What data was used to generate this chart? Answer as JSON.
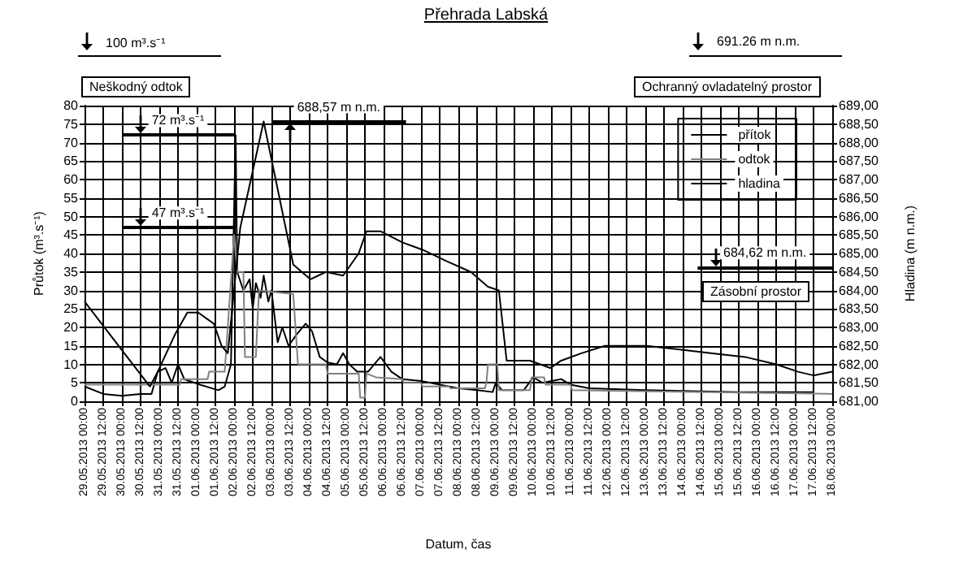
{
  "chart_data": {
    "type": "line",
    "title": "Přehrada Labská",
    "xlabel": "Datum, čas",
    "ylabel": "Průtok (m³.s⁻¹)",
    "y2label": "Hladina (m n.m.)",
    "annotations": [
      "100 m³.s⁻¹",
      "Neškodný odtok",
      "691.26 m n.m.",
      "Ochranný ovladatelný prostor",
      "Zásobní prostor"
    ],
    "legend": "top right",
    "grid": true,
    "line_style": "solid",
    "xlim": [
      "2013-05-29T00:00",
      "2013-06-18T00:00"
    ],
    "xticks": [
      {
        "value": "2013-05-29T00:00",
        "label": "29.05.2013 00:00"
      },
      {
        "value": "2013-05-29T12:00",
        "label": "29.05.2013 12:00"
      },
      {
        "value": "2013-05-30T00:00",
        "label": "30.05.2013 00:00"
      },
      {
        "value": "2013-05-30T12:00",
        "label": "30.05.2013 12:00"
      },
      {
        "value": "2013-05-31T00:00",
        "label": "31.05.2013 00:00"
      },
      {
        "value": "2013-05-31T12:00",
        "label": "31.05.2013 12:00"
      },
      {
        "value": "2013-06-01T00:00",
        "label": "01.06.2013 00:00"
      },
      {
        "value": "2013-06-01T12:00",
        "label": "01.06.2013 12:00"
      },
      {
        "value": "2013-06-02T00:00",
        "label": "02.06.2013 00:00"
      },
      {
        "value": "2013-06-02T12:00",
        "label": "02.06.2013 12:00"
      },
      {
        "value": "2013-06-03T00:00",
        "label": "03.06.2013 00:00"
      },
      {
        "value": "2013-06-03T12:00",
        "label": "03.06.2013 12:00"
      },
      {
        "value": "2013-06-04T00:00",
        "label": "04.06.2013 00:00"
      },
      {
        "value": "2013-06-04T12:00",
        "label": "04.06.2013 12:00"
      },
      {
        "value": "2013-06-05T00:00",
        "label": "05.06.2013 00:00"
      },
      {
        "value": "2013-06-05T12:00",
        "label": "05.06.2013 12:00"
      },
      {
        "value": "2013-06-06T00:00",
        "label": "06.06.2013 00:00"
      },
      {
        "value": "2013-06-06T12:00",
        "label": "06.06.2013 12:00"
      },
      {
        "value": "2013-06-07T00:00",
        "label": "07.06.2013 00:00"
      },
      {
        "value": "2013-06-07T12:00",
        "label": "07.06.2013 12:00"
      },
      {
        "value": "2013-06-08T00:00",
        "label": "08.06.2013 00:00"
      },
      {
        "value": "2013-06-08T12:00",
        "label": "08.06.2013 12:00"
      },
      {
        "value": "2013-06-09T00:00",
        "label": "09.06.2013 00:00"
      },
      {
        "value": "2013-06-09T12:00",
        "label": "09.06.2013 12:00"
      },
      {
        "value": "2013-06-10T00:00",
        "label": "10.06.2013 00:00"
      },
      {
        "value": "2013-06-10T12:00",
        "label": "10.06.2013 12:00"
      },
      {
        "value": "2013-06-11T00:00",
        "label": "11.06.2013 00:00"
      },
      {
        "value": "2013-06-11T12:00",
        "label": "11.06.2013 12:00"
      },
      {
        "value": "2013-06-12T00:00",
        "label": "12.06.2013 00:00"
      },
      {
        "value": "2013-06-12T12:00",
        "label": "12.06.2013 12:00"
      },
      {
        "value": "2013-06-13T00:00",
        "label": "13.06.2013 00:00"
      },
      {
        "value": "2013-06-13T12:00",
        "label": "13.06.2013 12:00"
      },
      {
        "value": "2013-06-14T00:00",
        "label": "14.06.2013 00:00"
      },
      {
        "value": "2013-06-14T12:00",
        "label": "14.06.2013 12:00"
      },
      {
        "value": "2013-06-15T00:00",
        "label": "15.06.2013 00:00"
      },
      {
        "value": "2013-06-15T12:00",
        "label": "15.06.2013 12:00"
      },
      {
        "value": "2013-06-16T00:00",
        "label": "16.06.2013 00:00"
      },
      {
        "value": "2013-06-16T12:00",
        "label": "16.06.2013 12:00"
      },
      {
        "value": "2013-06-17T00:00",
        "label": "17.06.2013 00:00"
      },
      {
        "value": "2013-06-17T12:00",
        "label": "17.06.2013 12:00"
      },
      {
        "value": "2013-06-18T00:00",
        "label": "18.06.2013 00:00"
      }
    ],
    "ylim": [
      0,
      80
    ],
    "yticks": [
      0,
      5,
      10,
      15,
      20,
      25,
      30,
      35,
      40,
      45,
      50,
      55,
      60,
      65,
      70,
      75,
      80
    ],
    "y2lim": [
      681,
      689
    ],
    "y2ticks": [
      {
        "value": 681,
        "label": "681,00"
      },
      {
        "value": 681.5,
        "label": "681,50"
      },
      {
        "value": 682,
        "label": "682,00"
      },
      {
        "value": 682.5,
        "label": "682,50"
      },
      {
        "value": 683,
        "label": "683,00"
      },
      {
        "value": 683.5,
        "label": "683,50"
      },
      {
        "value": 684,
        "label": "684,00"
      },
      {
        "value": 684.5,
        "label": "684,50"
      },
      {
        "value": 685,
        "label": "685,00"
      },
      {
        "value": 685.5,
        "label": "685,50"
      },
      {
        "value": 686,
        "label": "686,00"
      },
      {
        "value": 686.5,
        "label": "686,50"
      },
      {
        "value": 687,
        "label": "687,00"
      },
      {
        "value": 687.5,
        "label": "687,50"
      },
      {
        "value": 688,
        "label": "688,00"
      },
      {
        "value": 688.5,
        "label": "688,50"
      },
      {
        "value": 689,
        "label": "689,00"
      }
    ],
    "ref_lines": [
      {
        "axis": "y",
        "value": 72,
        "label": "72 m³.s⁻¹"
      },
      {
        "axis": "y",
        "value": 47,
        "label": "47 m³.s⁻¹"
      },
      {
        "axis": "y2",
        "value": 688.57,
        "label": "688,57 m n.m."
      },
      {
        "axis": "y2",
        "value": 684.62,
        "label": "684,62 m n.m."
      }
    ],
    "series": [
      {
        "name": "přítok",
        "color": "#000000",
        "x": [
          "2013-05-29T00:00",
          "2013-05-29T12:00",
          "2013-05-30T00:00",
          "2013-05-30T12:00",
          "2013-05-30T19:00",
          "2013-05-30T23:00",
          "2013-05-31T04:00",
          "2013-05-31T08:00",
          "2013-05-31T12:00",
          "2013-05-31T16:00",
          "2013-06-01T02:00",
          "2013-06-01T14:00",
          "2013-06-01T18:00",
          "2013-06-01T22:00",
          "2013-06-02T01:00",
          "2013-06-02T02:00",
          "2013-06-02T06:00",
          "2013-06-02T10:00",
          "2013-06-02T12:00",
          "2013-06-02T14:00",
          "2013-06-02T17:00",
          "2013-06-02T19:00",
          "2013-06-02T22:00",
          "2013-06-03T00:00",
          "2013-06-03T04:00",
          "2013-06-03T07:00",
          "2013-06-03T11:00",
          "2013-06-03T16:00",
          "2013-06-03T22:00",
          "2013-06-04T02:00",
          "2013-06-04T07:00",
          "2013-06-04T12:00",
          "2013-06-04T18:00",
          "2013-06-04T22:00",
          "2013-06-05T02:00",
          "2013-06-05T07:00",
          "2013-06-05T14:00",
          "2013-06-05T22:00",
          "2013-06-06T05:00",
          "2013-06-06T12:00",
          "2013-06-07T00:00",
          "2013-06-07T12:00",
          "2013-06-08T00:00",
          "2013-06-08T12:00",
          "2013-06-08T22:00",
          "2013-06-09T00:00",
          "2013-06-09T04:00",
          "2013-06-09T18:00",
          "2013-06-10T00:00",
          "2013-06-10T06:00",
          "2013-06-10T18:00",
          "2013-06-11T00:00",
          "2013-06-11T12:00",
          "2013-06-13T00:00",
          "2013-06-15T12:00",
          "2013-06-17T12:00"
        ],
        "values": [
          4,
          2,
          1.5,
          2,
          2,
          8,
          9,
          5,
          10,
          6,
          4.5,
          3,
          4,
          10,
          72,
          35,
          30,
          33,
          25,
          32,
          28,
          34,
          27,
          30,
          16,
          20,
          15,
          18,
          21,
          19,
          12,
          10.5,
          10,
          13,
          10,
          8,
          8,
          12,
          8,
          6,
          5.5,
          4.5,
          3.5,
          3,
          2.5,
          5,
          3,
          3,
          6.5,
          5,
          6,
          4.5,
          3.5,
          3,
          2.5,
          2.5
        ]
      },
      {
        "name": "odtok",
        "color": "#808080",
        "x": [
          "2013-05-29T00:00",
          "2013-05-30T18:00",
          "2013-05-31T13:00",
          "2013-05-31T14:00",
          "2013-06-01T07:00",
          "2013-06-01T08:00",
          "2013-06-01T18:00",
          "2013-06-02T00:00",
          "2013-06-02T02:00",
          "2013-06-02T06:00",
          "2013-06-02T07:00",
          "2013-06-02T14:00",
          "2013-06-02T16:00",
          "2013-06-03T14:00",
          "2013-06-03T17:00",
          "2013-06-04T11:00",
          "2013-06-04T12:00",
          "2013-06-05T08:00",
          "2013-06-05T09:00",
          "2013-06-05T12:00",
          "2013-06-05T13:00",
          "2013-06-05T19:00",
          "2013-06-06T12:00",
          "2013-06-06T13:00",
          "2013-06-07T00:00",
          "2013-06-07T01:00",
          "2013-06-07T18:00",
          "2013-06-07T19:00",
          "2013-06-08T17:00",
          "2013-06-08T18:00",
          "2013-06-08T19:00",
          "2013-06-09T01:00",
          "2013-06-09T02:00",
          "2013-06-09T22:00",
          "2013-06-09T23:00",
          "2013-06-10T07:00",
          "2013-06-10T08:00",
          "2013-06-11T00:00",
          "2013-06-11T01:00",
          "2013-06-18T00:00"
        ],
        "values": [
          4.5,
          4.5,
          4.5,
          6,
          6,
          8,
          8,
          45,
          35,
          35,
          12,
          12,
          30,
          29,
          10,
          10,
          7.5,
          7.5,
          1,
          1,
          7.5,
          6.5,
          6,
          5,
          5,
          4,
          4,
          3.5,
          3.5,
          5,
          10,
          10,
          3,
          3,
          6.5,
          6.5,
          4.5,
          4.5,
          3,
          2
        ]
      },
      {
        "name": "hladina",
        "color": "#000000",
        "axis": "y2",
        "x": [
          "2013-05-29T00:00",
          "2013-05-30T18:00",
          "2013-05-30T23:00",
          "2013-05-31T10:00",
          "2013-05-31T18:00",
          "2013-06-01T01:00",
          "2013-06-01T11:00",
          "2013-06-01T16:00",
          "2013-06-01T20:00",
          "2013-06-02T04:00",
          "2013-06-02T19:00",
          "2013-06-03T14:00",
          "2013-06-04T01:00",
          "2013-06-04T11:00",
          "2013-06-04T22:00",
          "2013-06-05T08:00",
          "2013-06-05T13:00",
          "2013-06-05T22:00",
          "2013-06-06T12:00",
          "2013-06-07T01:00",
          "2013-06-07T16:00",
          "2013-06-08T08:00",
          "2013-06-08T19:00",
          "2013-06-09T02:00",
          "2013-06-09T07:00",
          "2013-06-09T22:00",
          "2013-06-10T11:00",
          "2013-06-10T18:00",
          "2013-06-11T07:00",
          "2013-06-11T22:00",
          "2013-06-12T12:00",
          "2013-06-13T01:00",
          "2013-06-13T22:00",
          "2013-06-14T18:00",
          "2013-06-15T16:00",
          "2013-06-16T12:00",
          "2013-06-17T02:00",
          "2013-06-17T12:00",
          "2013-06-18T00:00"
        ],
        "values": [
          683.7,
          681.4,
          681.8,
          682.8,
          683.4,
          683.4,
          683.1,
          682.5,
          682.3,
          685.7,
          688.57,
          684.7,
          684.3,
          684.5,
          684.4,
          685.0,
          685.6,
          685.6,
          685.3,
          685.1,
          684.8,
          684.5,
          684.1,
          684.0,
          682.1,
          682.1,
          681.9,
          682.1,
          682.3,
          682.5,
          682.5,
          682.5,
          682.4,
          682.3,
          682.2,
          682.0,
          681.8,
          681.7,
          681.8
        ]
      }
    ]
  }
}
